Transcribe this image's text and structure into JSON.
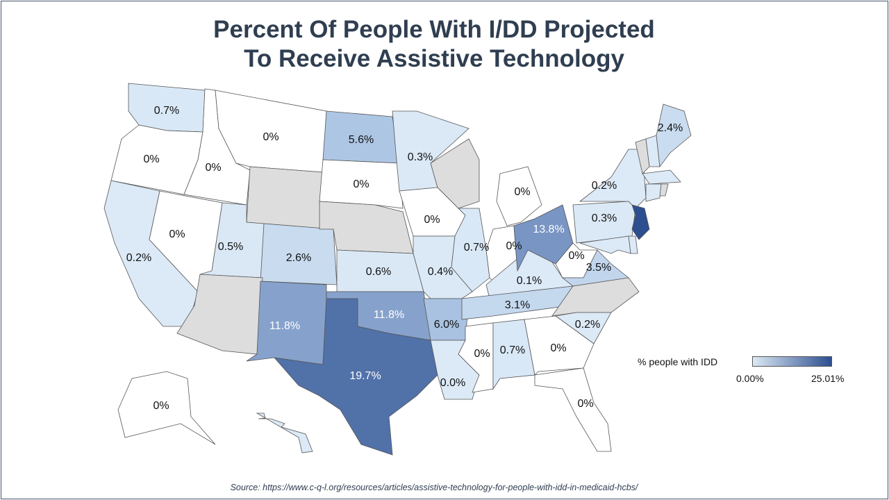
{
  "title_line1": "Percent Of People With I/DD Projected",
  "title_line2": "To Receive Assistive Technology",
  "legend": {
    "title": "% people with IDD",
    "min_label": "0.00%",
    "max_label": "25.01%",
    "min_color": "#dce9f5",
    "max_color": "#2d4e8f"
  },
  "colors": {
    "zero": "#ffffff",
    "no_data": "#dddddd",
    "border": "#555555"
  },
  "source": "Source: https://www.c-q-l.org/resources/articles/assistive-technology-for-people-with-idd-in-medicaid-hcbs/",
  "states": [
    {
      "id": "WA",
      "label": "0.7%",
      "fill": "#d9e8f6"
    },
    {
      "id": "OR",
      "label": "0%",
      "fill": "#ffffff"
    },
    {
      "id": "CA",
      "label": "0.2%",
      "fill": "#dce9f6"
    },
    {
      "id": "NV",
      "label": "0%",
      "fill": "#ffffff"
    },
    {
      "id": "ID",
      "label": "0%",
      "fill": "#ffffff"
    },
    {
      "id": "MT",
      "label": "0%",
      "fill": "#ffffff"
    },
    {
      "id": "WY",
      "label": "",
      "fill": "#dddddd"
    },
    {
      "id": "UT",
      "label": "0.5%",
      "fill": "#dae8f6"
    },
    {
      "id": "CO",
      "label": "2.6%",
      "fill": "#c8dbef"
    },
    {
      "id": "AZ",
      "label": "",
      "fill": "#dddddd"
    },
    {
      "id": "NM",
      "label": "11.8%",
      "fill": "#86a2cc"
    },
    {
      "id": "ND",
      "label": "5.6%",
      "fill": "#adc6e4"
    },
    {
      "id": "SD",
      "label": "0%",
      "fill": "#ffffff"
    },
    {
      "id": "NE",
      "label": "",
      "fill": "#dddddd"
    },
    {
      "id": "KS",
      "label": "0.6%",
      "fill": "#dae8f6"
    },
    {
      "id": "OK",
      "label": "11.8%",
      "fill": "#86a2cc"
    },
    {
      "id": "TX",
      "label": "19.7%",
      "fill": "#5171a9"
    },
    {
      "id": "MN",
      "label": "0.3%",
      "fill": "#dbe9f6"
    },
    {
      "id": "IA",
      "label": "0%",
      "fill": "#ffffff"
    },
    {
      "id": "MO",
      "label": "0.4%",
      "fill": "#dbe9f6"
    },
    {
      "id": "AR",
      "label": "6.0%",
      "fill": "#a9c2e1"
    },
    {
      "id": "LA",
      "label": "0.0%",
      "fill": "#dce9f6"
    },
    {
      "id": "WI",
      "label": "",
      "fill": "#dddddd"
    },
    {
      "id": "IL",
      "label": "0.7%",
      "fill": "#d9e8f6"
    },
    {
      "id": "MS",
      "label": "0%",
      "fill": "#ffffff"
    },
    {
      "id": "MI",
      "label": "0%",
      "fill": "#ffffff"
    },
    {
      "id": "IN",
      "label": "0%",
      "fill": "#ffffff"
    },
    {
      "id": "KY",
      "label": "0.1%",
      "fill": "#dce9f6"
    },
    {
      "id": "TN",
      "label": "3.1%",
      "fill": "#c4d8ee"
    },
    {
      "id": "AL",
      "label": "0.7%",
      "fill": "#d9e8f6"
    },
    {
      "id": "OH",
      "label": "13.8%",
      "fill": "#7895c4"
    },
    {
      "id": "WV",
      "label": "0%",
      "fill": "#ffffff"
    },
    {
      "id": "VA",
      "label": "3.5%",
      "fill": "#c1d6ed"
    },
    {
      "id": "NC",
      "label": "",
      "fill": "#dddddd"
    },
    {
      "id": "SC",
      "label": "0.2%",
      "fill": "#dce9f6"
    },
    {
      "id": "GA",
      "label": "0%",
      "fill": "#ffffff"
    },
    {
      "id": "FL",
      "label": "0%",
      "fill": "#ffffff"
    },
    {
      "id": "PA",
      "label": "0.3%",
      "fill": "#dbe9f6"
    },
    {
      "id": "NY",
      "label": "0.2%",
      "fill": "#dce9f6"
    },
    {
      "id": "NJ",
      "label": "",
      "fill": "#2d4e8f"
    },
    {
      "id": "DE",
      "label": "",
      "fill": "#dce9f6"
    },
    {
      "id": "MD",
      "label": "",
      "fill": "#dce9f6"
    },
    {
      "id": "VT",
      "label": "",
      "fill": "#dddddd"
    },
    {
      "id": "NH",
      "label": "",
      "fill": "#dce9f6"
    },
    {
      "id": "ME",
      "label": "2.4%",
      "fill": "#cadcef"
    },
    {
      "id": "MA",
      "label": "",
      "fill": "#dce9f6"
    },
    {
      "id": "CT",
      "label": "",
      "fill": "#dce9f6"
    },
    {
      "id": "RI",
      "label": "",
      "fill": "#dddddd"
    },
    {
      "id": "AK",
      "label": "0%",
      "fill": "#ffffff"
    },
    {
      "id": "HI",
      "label": "",
      "fill": "#dce9f6"
    }
  ]
}
